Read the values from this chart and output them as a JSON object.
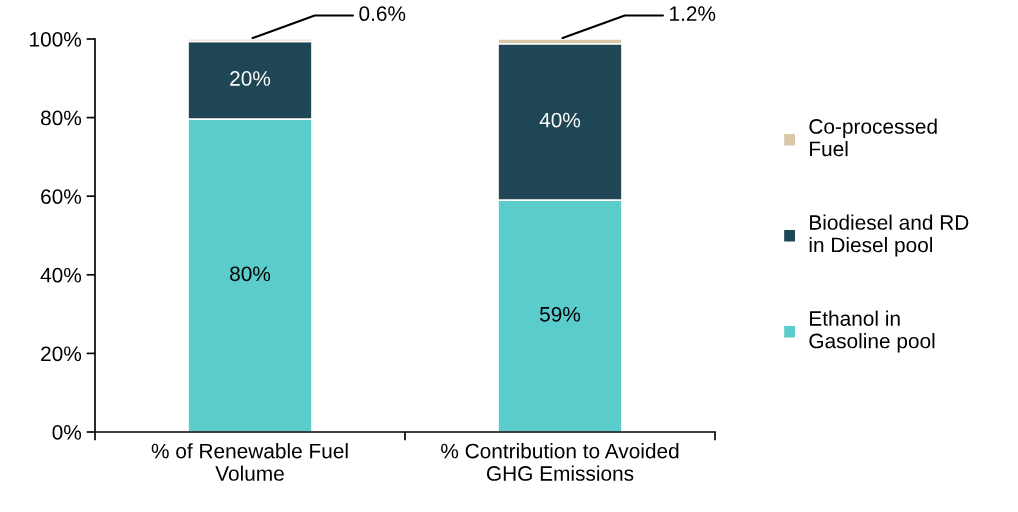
{
  "chart_data": {
    "type": "bar",
    "stacked": true,
    "categories": [
      "% of Renewable Fuel\nVolume",
      "% Contribution to Avoided\nGHG Emissions"
    ],
    "series": [
      {
        "name": "Ethanol in\nGasoline pool",
        "color": "#5bcccc",
        "values": [
          79.6,
          59.0
        ],
        "value_labels": [
          "80%",
          "59%"
        ]
      },
      {
        "name": "Biodiesel and RD\nin Diesel pool",
        "color": "#1f4654",
        "values": [
          19.8,
          39.8
        ],
        "value_labels": [
          "20%",
          "40%"
        ]
      },
      {
        "name": "Co-processed\nFuel",
        "color": "#d8c8a8",
        "values": [
          0.6,
          1.2
        ],
        "value_labels": [
          "0.6%",
          "1.2%"
        ]
      }
    ],
    "ylim": [
      0,
      100
    ],
    "yticks": [
      {
        "value": 0,
        "label": "0%"
      },
      {
        "value": 20,
        "label": "20%"
      },
      {
        "value": 40,
        "label": "40%"
      },
      {
        "value": 60,
        "label": "60%"
      },
      {
        "value": 80,
        "label": "80%"
      },
      {
        "value": 100,
        "label": "100%"
      }
    ],
    "grid": false,
    "legend": "right"
  }
}
